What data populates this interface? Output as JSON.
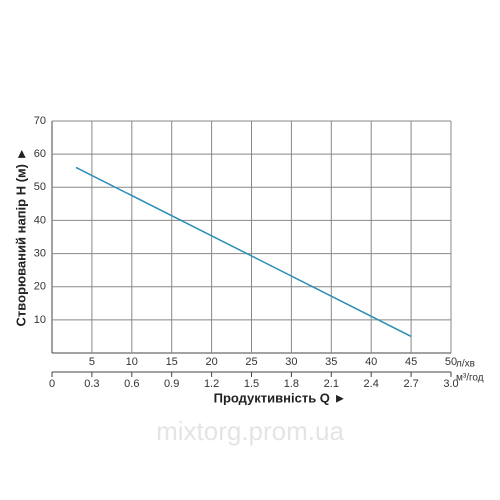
{
  "chart_data": {
    "type": "line",
    "x": [
      3,
      45
    ],
    "series": [
      {
        "color": "#2a8fb5",
        "values": [
          56,
          5
        ]
      }
    ],
    "xlim": [
      0,
      50
    ],
    "xticks": [
      5,
      10,
      15,
      20,
      25,
      30,
      35,
      40,
      45,
      50
    ],
    "x_unit": "л/хв",
    "x2lim": [
      0,
      3
    ],
    "x2ticks": [
      0,
      0.3,
      0.6,
      0.9,
      1.2,
      1.5,
      1.8,
      2.1,
      2.4,
      2.7,
      {
        "value": 3,
        "label": "3.0"
      }
    ],
    "x2_unit": "м³/год",
    "ylim": [
      0,
      70
    ],
    "yticks": [
      10,
      20,
      30,
      40,
      50,
      60,
      70
    ],
    "xlabel": "Продуктивність  Q  ►",
    "ylabel": "Створюваний напір H (м)  ►",
    "watermark": "mixtorg.prom.ua",
    "grid": true
  }
}
